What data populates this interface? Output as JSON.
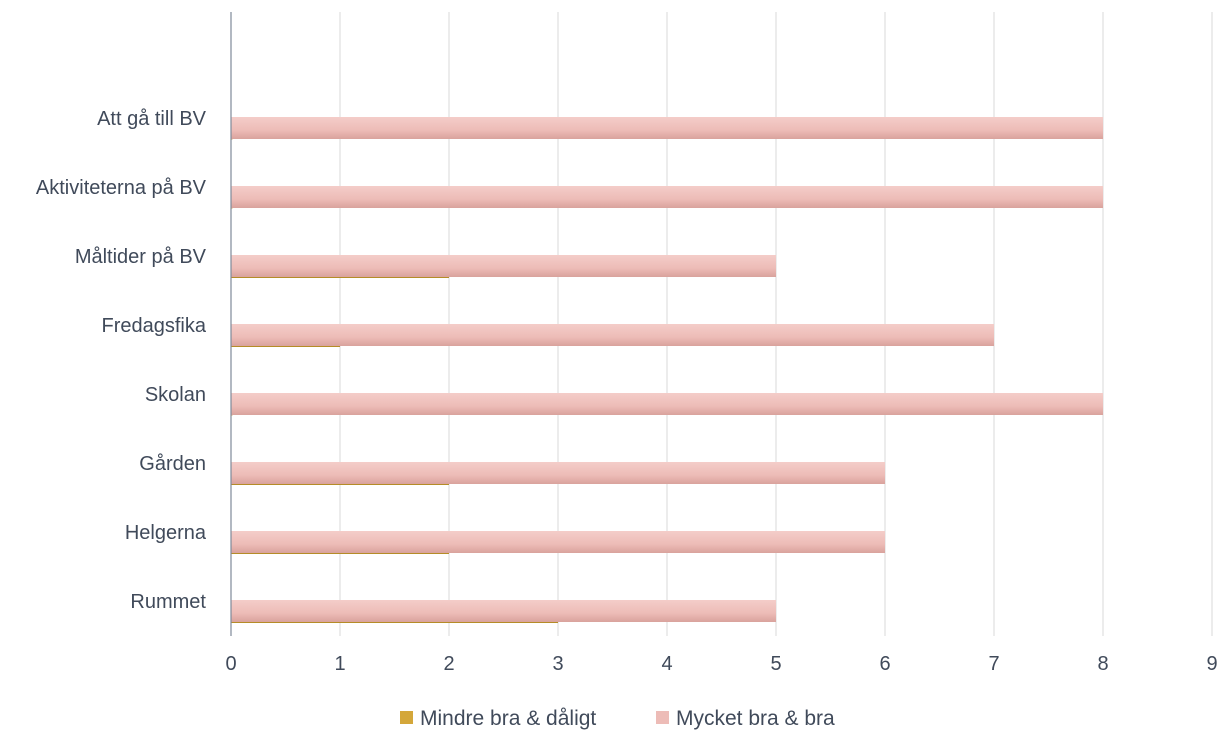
{
  "chart_data": {
    "type": "bar",
    "orientation": "horizontal",
    "categories": [
      "Att gå till BV",
      "Aktiviteterna på BV",
      "Måltider på BV",
      "Fredagsfika",
      "Skolan",
      "Gården",
      "Helgerna",
      "Rummet"
    ],
    "series": [
      {
        "name": "Mindre bra & dåligt",
        "color": "#d4a73a",
        "values": [
          0,
          0,
          2,
          1,
          0,
          2,
          2,
          3
        ]
      },
      {
        "name": "Mycket bra & bra",
        "color": "#edbcb7",
        "values": [
          8,
          8,
          5,
          7,
          8,
          6,
          6,
          5
        ]
      }
    ],
    "xlim": [
      0,
      9
    ],
    "xticks": [
      "0",
      "1",
      "2",
      "3",
      "4",
      "5",
      "6",
      "7",
      "8",
      "9"
    ],
    "grid": true,
    "legend": "bottom"
  }
}
